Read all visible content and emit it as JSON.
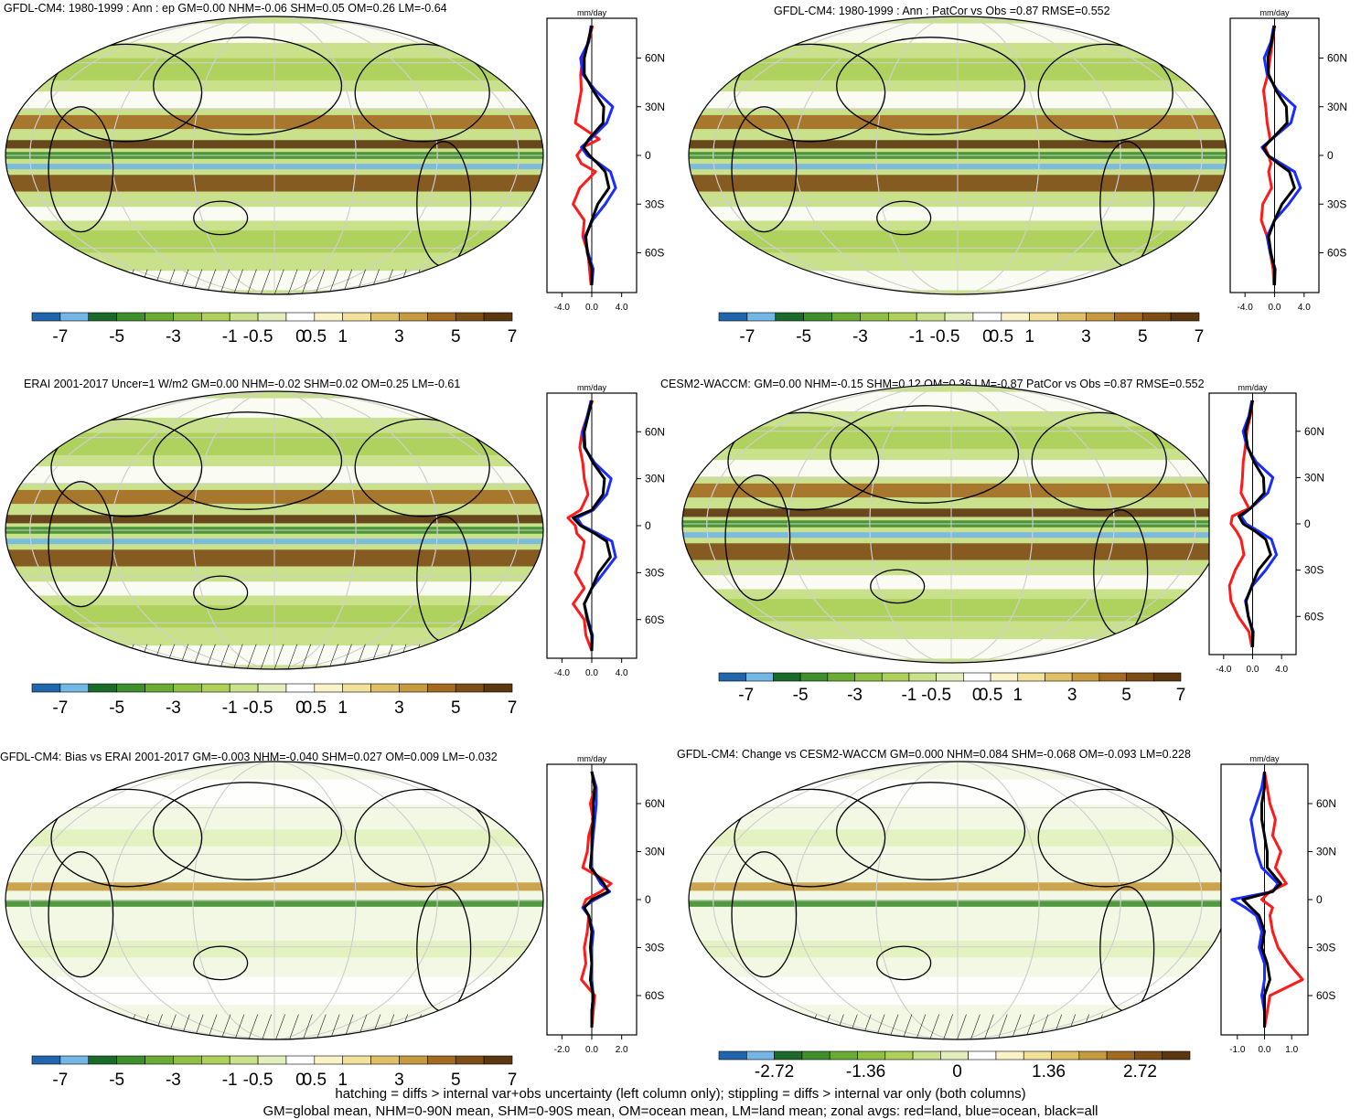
{
  "panels": [
    {
      "title": "GFDL-CM4: 1980-1999 : Ann : ep GM=0.00 NHM=-0.06 SHM=0.05 OM=0.26 LM=-0.64",
      "colorbar_labels": [
        "-7",
        "-5",
        "-3",
        "-1",
        "-0.5",
        "0",
        "0.5",
        "1",
        "3",
        "5",
        "7"
      ],
      "zonal_xticks": [
        "-4.0",
        "0.0",
        "4.0"
      ],
      "zonal_xlim": [
        -6,
        6
      ],
      "map_hatching": true,
      "map_stippling": true
    },
    {
      "title": "GFDL-CM4: 1980-1999 : Ann : PatCor vs Obs =0.87 RMSE=0.552",
      "colorbar_labels": [
        "-7",
        "-5",
        "-3",
        "-1",
        "-0.5",
        "0",
        "0.5",
        "1",
        "3",
        "5",
        "7"
      ],
      "zonal_xticks": [
        "-4.0",
        "0.0",
        "4.0"
      ],
      "zonal_xlim": [
        -6,
        6
      ],
      "map_hatching": false,
      "map_stippling": true
    },
    {
      "title": "ERAI 2001-2017 Uncer=1 W/m2 GM=0.00 NHM=-0.02 SHM=0.02 OM=0.25 LM=-0.61",
      "colorbar_labels": [
        "-7",
        "-5",
        "-3",
        "-1",
        "-0.5",
        "0",
        "0.5",
        "1",
        "3",
        "5",
        "7"
      ],
      "zonal_xticks": [
        "-4.0",
        "0.0",
        "4.0"
      ],
      "zonal_xlim": [
        -6,
        6
      ],
      "map_hatching": true,
      "map_stippling": true
    },
    {
      "title": "CESM2-WACCM: GM=0.00 NHM=-0.15 SHM=0.12 OM=0.36 LM=-0.87 PatCor vs Obs =0.87 RMSE=0.552",
      "colorbar_labels": [
        "-7",
        "-5",
        "-3",
        "-1",
        "-0.5",
        "0",
        "0.5",
        "1",
        "3",
        "5",
        "7"
      ],
      "zonal_xticks": [
        "-4.0",
        "0.0",
        "4.0"
      ],
      "zonal_xlim": [
        -6,
        6
      ],
      "map_hatching": false,
      "map_stippling": true
    },
    {
      "title": "GFDL-CM4: Bias vs ERAI 2001-2017 GM=-0.003 NHM=-0.040 SHM=0.027 OM=0.009 LM=-0.032",
      "colorbar_labels": [
        "-7",
        "-5",
        "-3",
        "-1",
        "-0.5",
        "0",
        "0.5",
        "1",
        "3",
        "5",
        "7"
      ],
      "zonal_xticks": [
        "-2.0",
        "0.0",
        "2.0"
      ],
      "zonal_xlim": [
        -3,
        3
      ],
      "map_hatching": true,
      "map_stippling": true
    },
    {
      "title": "GFDL-CM4: Change vs CESM2-WACCM GM=0.000 NHM=0.084 SHM=-0.068 OM=-0.093 LM=0.228",
      "colorbar_labels": [
        "-2.72",
        "-1.36",
        "0",
        "1.36",
        "2.72"
      ],
      "zonal_xticks": [
        "-1.0",
        "0.0",
        "1.0"
      ],
      "zonal_xlim": [
        -1.6,
        1.6
      ],
      "map_hatching": true,
      "map_stippling": true
    }
  ],
  "zonal_units": "mm/day",
  "lat_ticks": [
    "60N",
    "30N",
    "0",
    "30S",
    "60S"
  ],
  "colorbar_colors": [
    "#2166ac",
    "#74b7e6",
    "#1a6b2a",
    "#3f8f2c",
    "#6aab35",
    "#8fc044",
    "#acd05a",
    "#c9e18a",
    "#e2efbd",
    "#ffffff",
    "#fbf3c8",
    "#f1e19a",
    "#dfc066",
    "#c69a3f",
    "#a36b22",
    "#7d4d16",
    "#5c360e"
  ],
  "diverging_colors": [
    "#2166ac",
    "#74b7e6",
    "#1a6b2a",
    "#3f8f2c",
    "#6aab35",
    "#8fc044",
    "#acd05a",
    "#c9e18a",
    "#e2efbd",
    "#ffffff",
    "#fbf3c8",
    "#f1e19a",
    "#dfc066",
    "#c69a3f",
    "#a36b22",
    "#7d4d16",
    "#5c360e"
  ],
  "footer": {
    "line1": "hatching = diffs > internal var+obs uncertainty (left column only); stippling = diffs > internal var only (both columns)",
    "line2": "GM=global mean, NHM=0-90N mean, SHM=0-90S mean, OM=ocean mean, LM=land mean; zonal avgs: red=land, blue=ocean, black=all"
  },
  "chart_data": [
    {
      "type": "line",
      "ylabel": "",
      "xlabel": "",
      "units": "mm/day",
      "xlim": [
        -6,
        6
      ],
      "lat": [
        80,
        70,
        60,
        50,
        40,
        30,
        20,
        10,
        5,
        0,
        -5,
        -10,
        -20,
        -30,
        -40,
        -50,
        -60,
        -70,
        -80
      ],
      "series": [
        {
          "name": "land",
          "color": "#ff1a1a",
          "values": [
            0.1,
            -0.4,
            -1.2,
            -1.5,
            -1.4,
            -1.8,
            -2.2,
            1.0,
            -1.2,
            -2.0,
            -1.4,
            0.5,
            -1.6,
            -2.5,
            -1.0,
            -1.2,
            -0.5,
            -0.3,
            -0.1
          ]
        },
        {
          "name": "ocean",
          "color": "#1a2cff",
          "values": [
            -0.1,
            -0.4,
            -1.5,
            -1.2,
            0.5,
            2.8,
            2.0,
            -0.2,
            -1.4,
            -0.6,
            1.0,
            2.5,
            3.2,
            1.8,
            0.1,
            -0.9,
            -0.5,
            0.2,
            0.0
          ]
        },
        {
          "name": "all",
          "color": "#000000",
          "values": [
            0.0,
            -0.5,
            -1.0,
            -1.0,
            0.2,
            1.6,
            1.5,
            -0.4,
            -1.1,
            -0.3,
            0.8,
            1.8,
            2.3,
            0.8,
            0.0,
            -0.8,
            -0.6,
            0.0,
            0.0
          ]
        }
      ]
    },
    {
      "type": "line",
      "units": "mm/day",
      "xlim": [
        -6,
        6
      ],
      "lat": [
        80,
        70,
        60,
        50,
        40,
        30,
        20,
        10,
        5,
        0,
        -5,
        -10,
        -20,
        -30,
        -40,
        -50,
        -60,
        -70,
        -80
      ],
      "series": [
        {
          "name": "land",
          "color": "#ff1a1a",
          "values": [
            0.0,
            -0.3,
            -0.6,
            -0.9,
            -1.5,
            -1.2,
            -1.0,
            -0.6,
            -1.3,
            -0.8,
            -0.5,
            -0.8,
            -0.4,
            -1.6,
            -1.8,
            -1.0,
            -0.6,
            -0.2,
            -0.1
          ]
        },
        {
          "name": "ocean",
          "color": "#1a2cff",
          "values": [
            -0.1,
            -0.5,
            -1.4,
            -1.0,
            0.4,
            2.8,
            2.2,
            -0.4,
            -1.7,
            -0.9,
            0.9,
            2.7,
            3.5,
            1.9,
            0.0,
            -1.0,
            -0.6,
            0.1,
            0.0
          ]
        },
        {
          "name": "all",
          "color": "#000000",
          "values": [
            0.0,
            -0.4,
            -0.9,
            -0.8,
            0.2,
            1.6,
            1.7,
            -0.4,
            -1.5,
            -0.9,
            0.5,
            2.0,
            2.7,
            1.0,
            0.0,
            -0.8,
            -0.5,
            0.0,
            0.0
          ]
        }
      ]
    },
    {
      "type": "line",
      "units": "mm/day",
      "xlim": [
        -6,
        6
      ],
      "lat": [
        80,
        70,
        60,
        50,
        40,
        30,
        20,
        10,
        5,
        0,
        -5,
        -10,
        -20,
        -30,
        -40,
        -50,
        -60,
        -70,
        -80
      ],
      "series": [
        {
          "name": "land",
          "color": "#ff1a1a",
          "values": [
            0.1,
            -0.6,
            -1.3,
            -1.6,
            -1.2,
            -1.0,
            -0.5,
            -1.5,
            -3.2,
            -2.2,
            -2.0,
            -1.0,
            -1.4,
            -2.2,
            -1.0,
            -2.5,
            -1.0,
            -0.8,
            0.0
          ]
        },
        {
          "name": "ocean",
          "color": "#1a2cff",
          "values": [
            -0.1,
            -0.6,
            -1.2,
            -1.0,
            0.4,
            2.6,
            2.0,
            0.2,
            -2.0,
            -1.3,
            0.8,
            2.7,
            3.2,
            1.6,
            0.0,
            -1.0,
            -0.5,
            0.1,
            0.0
          ]
        },
        {
          "name": "all",
          "color": "#000000",
          "values": [
            0.0,
            -0.5,
            -1.0,
            -0.9,
            0.2,
            1.7,
            1.5,
            0.0,
            -2.5,
            -1.5,
            0.4,
            2.0,
            2.5,
            0.9,
            0.0,
            -1.0,
            -0.6,
            0.0,
            0.0
          ]
        }
      ]
    },
    {
      "type": "line",
      "units": "mm/day",
      "xlim": [
        -6,
        6
      ],
      "lat": [
        80,
        70,
        60,
        50,
        40,
        30,
        20,
        10,
        5,
        0,
        -5,
        -10,
        -20,
        -30,
        -40,
        -50,
        -60,
        -70,
        -80
      ],
      "series": [
        {
          "name": "land",
          "color": "#ff1a1a",
          "values": [
            0.0,
            -0.3,
            -0.8,
            -1.0,
            -1.3,
            -1.4,
            -1.6,
            -0.5,
            -2.8,
            -3.0,
            -2.2,
            -1.6,
            -1.2,
            -2.4,
            -3.2,
            -3.0,
            -2.0,
            -0.5,
            -0.1
          ]
        },
        {
          "name": "ocean",
          "color": "#1a2cff",
          "values": [
            -0.1,
            -0.5,
            -1.3,
            -0.8,
            0.5,
            2.8,
            2.1,
            -0.3,
            -1.6,
            -0.9,
            0.9,
            2.6,
            3.3,
            1.8,
            0.0,
            -1.0,
            -0.6,
            0.1,
            0.0
          ]
        },
        {
          "name": "all",
          "color": "#000000",
          "values": [
            0.0,
            -0.4,
            -1.0,
            -0.7,
            0.2,
            1.5,
            1.6,
            -0.3,
            -1.9,
            -1.3,
            0.4,
            1.8,
            2.5,
            0.8,
            -0.1,
            -0.9,
            -0.6,
            0.0,
            0.0
          ]
        }
      ]
    },
    {
      "type": "line",
      "units": "mm/day",
      "xlim": [
        -3,
        3
      ],
      "lat": [
        80,
        70,
        60,
        50,
        40,
        30,
        20,
        10,
        5,
        0,
        -5,
        -10,
        -20,
        -30,
        -40,
        -50,
        -60,
        -70,
        -80
      ],
      "series": [
        {
          "name": "land",
          "color": "#ff1a1a",
          "values": [
            0.0,
            0.2,
            -0.1,
            0.1,
            -0.2,
            -0.3,
            -0.6,
            1.3,
            0.6,
            -0.4,
            -0.6,
            -0.2,
            -0.3,
            -0.5,
            -0.4,
            -0.7,
            0.2,
            0.1,
            0.0
          ]
        },
        {
          "name": "ocean",
          "color": "#1a2cff",
          "values": [
            0.0,
            0.3,
            0.3,
            0.2,
            0.1,
            0.0,
            0.0,
            0.6,
            1.2,
            0.2,
            -0.6,
            -0.2,
            0.1,
            0.0,
            0.0,
            0.0,
            0.1,
            0.0,
            0.0
          ]
        },
        {
          "name": "all",
          "color": "#000000",
          "values": [
            0.0,
            0.2,
            0.1,
            0.1,
            0.0,
            0.0,
            -0.1,
            0.8,
            1.1,
            0.0,
            -0.5,
            -0.2,
            0.0,
            -0.1,
            0.0,
            -0.1,
            0.1,
            0.0,
            0.0
          ]
        }
      ]
    },
    {
      "type": "line",
      "units": "mm/day",
      "xlim": [
        -1.6,
        1.6
      ],
      "lat": [
        80,
        70,
        60,
        50,
        40,
        30,
        20,
        10,
        5,
        0,
        -5,
        -10,
        -20,
        -30,
        -40,
        -50,
        -60,
        -70,
        -80
      ],
      "series": [
        {
          "name": "land",
          "color": "#ff1a1a",
          "values": [
            0.0,
            0.1,
            0.2,
            0.4,
            0.3,
            0.6,
            0.4,
            0.8,
            0.2,
            -0.1,
            0.3,
            0.2,
            0.3,
            0.5,
            0.9,
            1.4,
            0.2,
            0.1,
            0.0
          ]
        },
        {
          "name": "ocean",
          "color": "#1a2cff",
          "values": [
            0.0,
            -0.1,
            -0.3,
            -0.5,
            -0.4,
            -0.3,
            -0.1,
            0.5,
            0.3,
            -1.2,
            -0.7,
            -0.3,
            -0.1,
            -0.2,
            0.0,
            0.0,
            -0.1,
            0.0,
            0.0
          ]
        },
        {
          "name": "all",
          "color": "#000000",
          "values": [
            0.0,
            0.0,
            -0.1,
            -0.1,
            0.0,
            0.1,
            0.1,
            0.6,
            0.3,
            -0.8,
            -0.5,
            -0.2,
            0.0,
            -0.1,
            0.1,
            0.2,
            0.0,
            0.0,
            0.0
          ]
        }
      ]
    }
  ]
}
